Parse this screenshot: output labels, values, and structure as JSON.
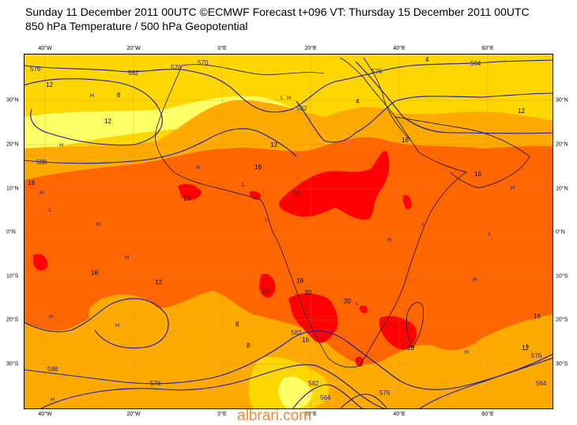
{
  "header": {
    "line1": "Sunday 11 December 2011 00UTC ©ECMWF Forecast t+096 VT: Thursday 15 December 2011 00UTC",
    "line2": "850 hPa Temperature / 500 hPa Geopotential"
  },
  "axes": {
    "lon_labels": [
      "40°W",
      "20°W",
      "0°E",
      "20°E",
      "40°E",
      "60°E"
    ],
    "lat_labels_left": [
      "30°N",
      "20°N",
      "10°N",
      "0°N",
      "10°S",
      "20°S",
      "30°S"
    ],
    "lat_labels_right": [
      "30°N",
      "20°N",
      "10°N",
      "0°N",
      "10°S",
      "20°S",
      "30°S"
    ]
  },
  "map_data": {
    "extent": {
      "lon": [
        -45,
        75
      ],
      "lat": [
        -40,
        40
      ]
    },
    "colors": {
      "cool": "#ffff66",
      "mild": "#ffd700",
      "warm": "#ffaa00",
      "hot": "#ff6600",
      "very_hot": "#ff0000",
      "contour": "#1a1a9e",
      "coast": "#000000",
      "grid": "#c08040"
    },
    "temperature_labels": [
      "12",
      "8",
      "12",
      "16",
      "16",
      "12",
      "16",
      "12",
      "16",
      "20",
      "20",
      "20",
      "16",
      "20",
      "16",
      "16",
      "12",
      "12",
      "16",
      "8",
      "8",
      "4",
      "4",
      "20",
      "20"
    ],
    "geopotential_labels": [
      "576",
      "576",
      "570",
      "582",
      "582",
      "576",
      "564",
      "588",
      "582",
      "576",
      "564",
      "576",
      "588",
      "582",
      "576",
      "564"
    ],
    "pressure_marks": [
      "H",
      "H",
      "H",
      "L",
      "H",
      "H",
      "L",
      "H",
      "H",
      "L",
      "L",
      "H",
      "H",
      "H",
      "L",
      "L",
      "H",
      "H",
      "H",
      "L",
      "H",
      "L"
    ]
  },
  "watermark": "albrari.com"
}
